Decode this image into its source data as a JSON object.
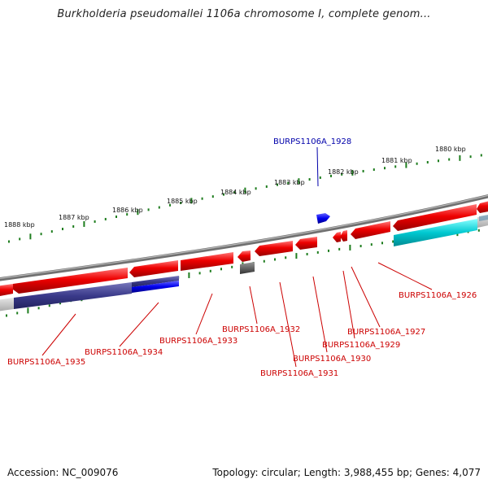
{
  "header": {
    "title": "Burkholderia pseudomallei 1106a chromosome I, complete genom..."
  },
  "footer": {
    "accession": "Accession: NC_009076",
    "summary": "Topology: circular; Length: 3,988,455 bp; Genes: 4,077"
  },
  "colors": {
    "forward_gene": "#e8000b",
    "reverse_highlight": "#1a1aff",
    "gray_gene": "#555555",
    "gene_label": "#cc0000",
    "selected_label": "#0000aa",
    "ruler": "#1e7d1e",
    "backbone": "#808080"
  },
  "ruler": {
    "ticks": [
      {
        "label": "1888 kbp"
      },
      {
        "label": "1887 kbp"
      },
      {
        "label": "1886 kbp"
      },
      {
        "label": "1885 kbp"
      },
      {
        "label": "1884 kbp"
      },
      {
        "label": "1883 kbp"
      },
      {
        "label": "1882 kbp"
      },
      {
        "label": "1881 kbp"
      },
      {
        "label": "1880 kbp"
      }
    ]
  },
  "genes": {
    "selected": {
      "label": "BURPS1106A_1928"
    },
    "labels": [
      "BURPS1106A_1926",
      "BURPS1106A_1927",
      "BURPS1106A_1929",
      "BURPS1106A_1930",
      "BURPS1106A_1931",
      "BURPS1106A_1932",
      "BURPS1106A_1933",
      "BURPS1106A_1934",
      "BURPS1106A_1935"
    ]
  }
}
